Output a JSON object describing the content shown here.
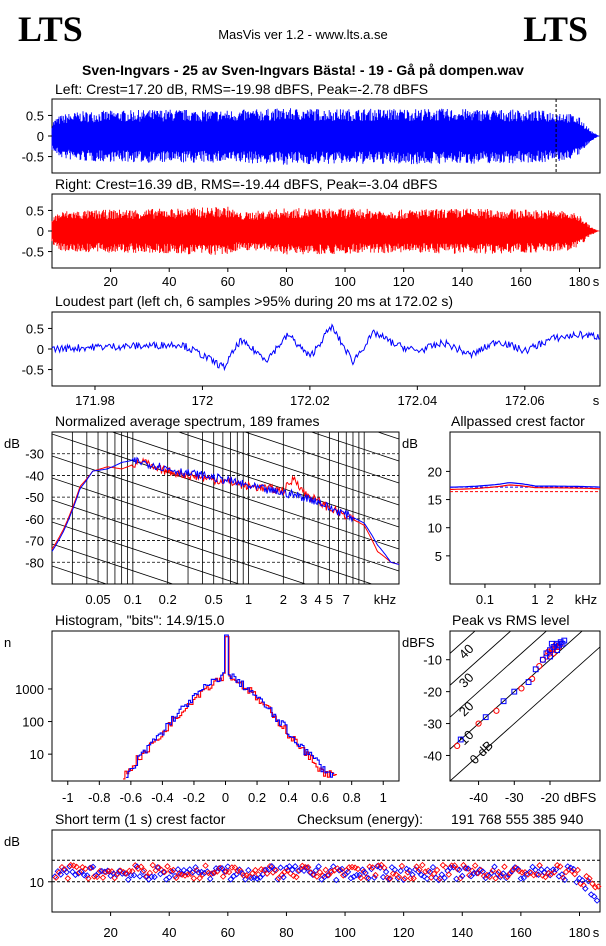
{
  "header": {
    "logo_left": "LTS",
    "logo_right": "LTS",
    "app": "MasVis ver 1.2 - www.lts.a.se",
    "file_title": "Sven-Ingvars - 25 av Sven-Ingvars Bästa! - 19 - Gå på dompen.wav"
  },
  "colors": {
    "left": "#0000ff",
    "right": "#ff0000",
    "axis": "#000000"
  },
  "chart_data": [
    {
      "id": "left-waveform",
      "type": "area",
      "title": "Left: Crest=17.20 dB, RMS=-19.98 dBFS, Peak=-2.78 dBFS",
      "ylim": [
        -0.9,
        0.9
      ],
      "yticks": [
        0.5,
        0,
        -0.5
      ],
      "ytick_labels": [
        "0.5",
        "0",
        "-0.5"
      ],
      "xlim": [
        0,
        187
      ],
      "marker_x": 172.02,
      "envelope_max": [
        [
          0,
          0.35
        ],
        [
          2,
          0.48
        ],
        [
          5,
          0.55
        ],
        [
          10,
          0.6
        ],
        [
          20,
          0.62
        ],
        [
          40,
          0.65
        ],
        [
          60,
          0.63
        ],
        [
          80,
          0.68
        ],
        [
          100,
          0.66
        ],
        [
          120,
          0.67
        ],
        [
          140,
          0.66
        ],
        [
          160,
          0.64
        ],
        [
          175,
          0.6
        ],
        [
          180,
          0.45
        ],
        [
          182,
          0.3
        ],
        [
          184,
          0.12
        ],
        [
          186,
          0.03
        ],
        [
          187,
          0
        ]
      ],
      "envelope_min": [
        [
          0,
          -0.35
        ],
        [
          2,
          -0.5
        ],
        [
          5,
          -0.58
        ],
        [
          10,
          -0.62
        ],
        [
          20,
          -0.63
        ],
        [
          40,
          -0.66
        ],
        [
          60,
          -0.65
        ],
        [
          80,
          -0.7
        ],
        [
          100,
          -0.68
        ],
        [
          120,
          -0.69
        ],
        [
          140,
          -0.68
        ],
        [
          160,
          -0.66
        ],
        [
          175,
          -0.62
        ],
        [
          180,
          -0.46
        ],
        [
          182,
          -0.3
        ],
        [
          184,
          -0.12
        ],
        [
          186,
          -0.03
        ],
        [
          187,
          0
        ]
      ]
    },
    {
      "id": "right-waveform",
      "type": "area",
      "title": "Right: Crest=16.39 dB, RMS=-19.44 dBFS, Peak=-3.04 dBFS",
      "ylim": [
        -0.9,
        0.9
      ],
      "yticks": [
        0.5,
        0,
        -0.5
      ],
      "ytick_labels": [
        "0.5",
        "0",
        "-0.5"
      ],
      "xlim": [
        0,
        187
      ],
      "xticks": [
        20,
        40,
        60,
        80,
        100,
        120,
        140,
        160,
        180
      ],
      "xunit": "s",
      "envelope_max": [
        [
          0,
          0.32
        ],
        [
          2,
          0.45
        ],
        [
          5,
          0.5
        ],
        [
          10,
          0.5
        ],
        [
          20,
          0.52
        ],
        [
          40,
          0.55
        ],
        [
          60,
          0.6
        ],
        [
          64,
          0.45
        ],
        [
          80,
          0.56
        ],
        [
          100,
          0.55
        ],
        [
          120,
          0.52
        ],
        [
          140,
          0.55
        ],
        [
          160,
          0.53
        ],
        [
          175,
          0.5
        ],
        [
          180,
          0.4
        ],
        [
          182,
          0.25
        ],
        [
          184,
          0.1
        ],
        [
          186,
          0.02
        ],
        [
          187,
          0
        ]
      ],
      "envelope_min": [
        [
          0,
          -0.32
        ],
        [
          2,
          -0.46
        ],
        [
          5,
          -0.5
        ],
        [
          10,
          -0.52
        ],
        [
          20,
          -0.53
        ],
        [
          40,
          -0.56
        ],
        [
          60,
          -0.6
        ],
        [
          64,
          -0.45
        ],
        [
          80,
          -0.57
        ],
        [
          100,
          -0.56
        ],
        [
          120,
          -0.53
        ],
        [
          140,
          -0.56
        ],
        [
          160,
          -0.54
        ],
        [
          175,
          -0.5
        ],
        [
          180,
          -0.4
        ],
        [
          182,
          -0.25
        ],
        [
          184,
          -0.1
        ],
        [
          186,
          -0.02
        ],
        [
          187,
          0
        ]
      ]
    },
    {
      "id": "loudest-part",
      "type": "line",
      "title": "Loudest part (left  ch, 6 samples >95% during 20 ms at 172.02 s)",
      "ylim": [
        -0.9,
        0.9
      ],
      "yticks": [
        0.5,
        0,
        -0.5
      ],
      "ytick_labels": [
        "0.5",
        "0",
        "-0.5"
      ],
      "xlim": [
        171.972,
        172.074
      ],
      "xticks": [
        171.98,
        172,
        172.02,
        172.04,
        172.06
      ],
      "xtick_labels": [
        "171.98",
        "172",
        "172.02",
        "172.04",
        "172.06"
      ],
      "xunit": "s",
      "shape": [
        [
          171.972,
          0.0
        ],
        [
          171.98,
          0.05
        ],
        [
          171.99,
          0.08
        ],
        [
          171.996,
          0.12
        ],
        [
          172.0,
          -0.15
        ],
        [
          172.004,
          -0.45
        ],
        [
          172.007,
          0.2
        ],
        [
          172.012,
          -0.25
        ],
        [
          172.016,
          0.35
        ],
        [
          172.02,
          -0.2
        ],
        [
          172.024,
          0.55
        ],
        [
          172.028,
          -0.3
        ],
        [
          172.032,
          0.4
        ],
        [
          172.036,
          0.1
        ],
        [
          172.04,
          -0.05
        ],
        [
          172.045,
          0.15
        ],
        [
          172.05,
          -0.15
        ],
        [
          172.055,
          0.2
        ],
        [
          172.06,
          -0.05
        ],
        [
          172.065,
          0.25
        ],
        [
          172.07,
          0.35
        ],
        [
          172.074,
          0.3
        ]
      ]
    },
    {
      "id": "spectrum",
      "type": "line",
      "title": "Normalized average spectrum, 189 frames",
      "ylabel": "dB",
      "ylim": [
        -90,
        -20
      ],
      "yticks": [
        -30,
        -40,
        -50,
        -60,
        -70,
        -80
      ],
      "xscale": "log",
      "xlim": [
        0.02,
        20
      ],
      "xunit": "kHz",
      "xticks": [
        0.05,
        0.1,
        0.2,
        0.5,
        1,
        2,
        3,
        4,
        5,
        7
      ],
      "xtick_labels": [
        "0.05",
        "0.1",
        "0.2",
        "0.5",
        "1",
        "2",
        "3",
        "4",
        "5",
        "7"
      ],
      "series": [
        {
          "points": [
            [
              0.02,
              -74
            ],
            [
              0.025,
              -65
            ],
            [
              0.03,
              -55
            ],
            [
              0.035,
              -45
            ],
            [
              0.045,
              -38
            ],
            [
              0.06,
              -36
            ],
            [
              0.08,
              -37
            ],
            [
              0.1,
              -35
            ],
            [
              0.12,
              -33
            ],
            [
              0.15,
              -37
            ],
            [
              0.2,
              -38
            ],
            [
              0.3,
              -40
            ],
            [
              0.5,
              -42
            ],
            [
              1,
              -45
            ],
            [
              1.5,
              -46
            ],
            [
              2,
              -47
            ],
            [
              2.5,
              -41
            ],
            [
              3,
              -48
            ],
            [
              4,
              -52
            ],
            [
              5,
              -55
            ],
            [
              7,
              -59
            ],
            [
              10,
              -63
            ],
            [
              13,
              -75
            ],
            [
              17,
              -80
            ],
            [
              20,
              -81
            ]
          ]
        },
        {
          "points": [
            [
              0.02,
              -75
            ],
            [
              0.025,
              -66
            ],
            [
              0.03,
              -56
            ],
            [
              0.035,
              -46
            ],
            [
              0.045,
              -38
            ],
            [
              0.06,
              -37
            ],
            [
              0.08,
              -34
            ],
            [
              0.1,
              -33
            ],
            [
              0.12,
              -34
            ],
            [
              0.15,
              -35
            ],
            [
              0.2,
              -37
            ],
            [
              0.3,
              -39
            ],
            [
              0.5,
              -41
            ],
            [
              1,
              -45
            ],
            [
              1.5,
              -47
            ],
            [
              2,
              -48
            ],
            [
              2.5,
              -49
            ],
            [
              3,
              -50
            ],
            [
              4,
              -52
            ],
            [
              5,
              -55
            ],
            [
              7,
              -58
            ],
            [
              10,
              -62
            ],
            [
              13,
              -72
            ],
            [
              17,
              -80
            ],
            [
              20,
              -81
            ]
          ]
        }
      ]
    },
    {
      "id": "allpassed-crest",
      "type": "line",
      "title": "Allpassed crest factor",
      "ylabel": "dB",
      "ylim": [
        0,
        27
      ],
      "yticks": [
        20,
        15,
        10,
        5
      ],
      "xscale": "log",
      "xlim": [
        0.02,
        20
      ],
      "xticks": [
        0.1,
        1,
        2
      ],
      "xtick_labels": [
        "0.1",
        "1",
        "2"
      ],
      "xunit": "kHz",
      "series": [
        {
          "points": [
            [
              0.02,
              17.2
            ],
            [
              0.1,
              17.5
            ],
            [
              0.3,
              18.0
            ],
            [
              1,
              17.4
            ],
            [
              20,
              17.2
            ]
          ]
        },
        {
          "points": [
            [
              0.02,
              16.8
            ],
            [
              0.1,
              17.1
            ],
            [
              0.3,
              17.6
            ],
            [
              1,
              17.1
            ],
            [
              20,
              16.9
            ]
          ]
        }
      ],
      "reference": [
        {
          "y": 17.2
        },
        {
          "y": 16.4
        }
      ]
    },
    {
      "id": "histogram",
      "type": "line",
      "title": "Histogram, \"bits\": 14.9/15.0",
      "ylabel": "n",
      "yscale": "log",
      "ylim": [
        1.5,
        60000
      ],
      "yticks": [
        1000,
        100,
        10
      ],
      "ytick_labels": [
        "1000",
        "100",
        "10"
      ],
      "xlim": [
        -1.1,
        1.1
      ],
      "xticks": [
        -1,
        -0.8,
        -0.6,
        -0.4,
        -0.2,
        0,
        0.2,
        0.4,
        0.6,
        0.8,
        1
      ],
      "xtick_labels": [
        "-1",
        "-0.8",
        "-0.6",
        "-0.4",
        "-0.2",
        "0",
        "0.2",
        "0.4",
        "0.6",
        "0.8",
        "1"
      ],
      "series": [
        {
          "points": [
            [
              -0.65,
              2
            ],
            [
              -0.6,
              4
            ],
            [
              -0.5,
              12
            ],
            [
              -0.4,
              40
            ],
            [
              -0.3,
              150
            ],
            [
              -0.2,
              500
            ],
            [
              -0.1,
              1300
            ],
            [
              -0.02,
              2500
            ],
            [
              0,
              40000
            ],
            [
              0.02,
              2500
            ],
            [
              0.1,
              1300
            ],
            [
              0.2,
              450
            ],
            [
              0.3,
              130
            ],
            [
              0.4,
              35
            ],
            [
              0.5,
              10
            ],
            [
              0.6,
              3
            ],
            [
              0.7,
              2
            ]
          ]
        },
        {
          "points": [
            [
              -0.63,
              2
            ],
            [
              -0.58,
              4
            ],
            [
              -0.5,
              14
            ],
            [
              -0.4,
              45
            ],
            [
              -0.3,
              170
            ],
            [
              -0.2,
              540
            ],
            [
              -0.1,
              1400
            ],
            [
              -0.02,
              2600
            ],
            [
              0,
              45000
            ],
            [
              0.02,
              2600
            ],
            [
              0.1,
              1350
            ],
            [
              0.2,
              480
            ],
            [
              0.3,
              140
            ],
            [
              0.4,
              38
            ],
            [
              0.5,
              12
            ],
            [
              0.6,
              4
            ],
            [
              0.68,
              2
            ]
          ]
        }
      ]
    },
    {
      "id": "peak-vs-rms",
      "type": "scatter",
      "title": "Peak vs RMS level",
      "ylabel": "dBFS",
      "xlabel": "dBFS",
      "xlim": [
        -48,
        -6
      ],
      "ylim": [
        -48,
        -1
      ],
      "xticks": [
        -40,
        -30,
        -20
      ],
      "xtick_labels": [
        "-40",
        "-30",
        "-20"
      ],
      "yticks": [
        -10,
        -20,
        -30,
        -40
      ],
      "ytick_labels": [
        "-10",
        "-20",
        "-30",
        "-40"
      ],
      "diagonals": [
        40,
        30,
        20,
        10,
        0
      ],
      "diagonal_labels": [
        "40",
        "30",
        "20",
        "10",
        "0 dB"
      ],
      "series": [
        {
          "points": [
            [
              -46,
              -37
            ],
            [
              -40,
              -30
            ],
            [
              -35,
              -26
            ],
            [
              -28,
              -19
            ],
            [
              -25,
              -16
            ],
            [
              -23,
              -12
            ],
            [
              -21,
              -9
            ],
            [
              -20,
              -8
            ],
            [
              -19.5,
              -7
            ],
            [
              -19,
              -6.5
            ],
            [
              -18,
              -6
            ],
            [
              -17,
              -5
            ],
            [
              -20.5,
              -7.5
            ],
            [
              -18.5,
              -5.5
            ],
            [
              -22,
              -10
            ],
            [
              -19,
              -8
            ],
            [
              -17.5,
              -6
            ]
          ]
        },
        {
          "points": [
            [
              -45,
              -35
            ],
            [
              -38,
              -28
            ],
            [
              -33,
              -23
            ],
            [
              -30,
              -20
            ],
            [
              -26,
              -17
            ],
            [
              -24,
              -13
            ],
            [
              -22,
              -10
            ],
            [
              -21,
              -8
            ],
            [
              -20,
              -7
            ],
            [
              -19,
              -6
            ],
            [
              -18,
              -5
            ],
            [
              -17,
              -4.5
            ],
            [
              -16,
              -4
            ],
            [
              -20,
              -9
            ],
            [
              -18,
              -7
            ],
            [
              -19.5,
              -5
            ],
            [
              -17.5,
              -5.5
            ],
            [
              -16.5,
              -5
            ]
          ]
        }
      ]
    },
    {
      "id": "short-term-crest",
      "type": "scatter",
      "title": "Short term (1 s) crest factor",
      "ylabel": "dB",
      "ylim": [
        3,
        22
      ],
      "yticks": [
        10
      ],
      "ytick_labels": [
        "10"
      ],
      "xlim": [
        0,
        187
      ],
      "xticks": [
        20,
        40,
        60,
        80,
        100,
        120,
        140,
        160,
        180
      ],
      "xunit": "s",
      "reference_lines": [
        15,
        10
      ],
      "checksum_label": "Checksum (energy):",
      "checksum_value": "191 768 555 385 940",
      "series_mean": [
        12.0,
        12.3
      ]
    }
  ]
}
